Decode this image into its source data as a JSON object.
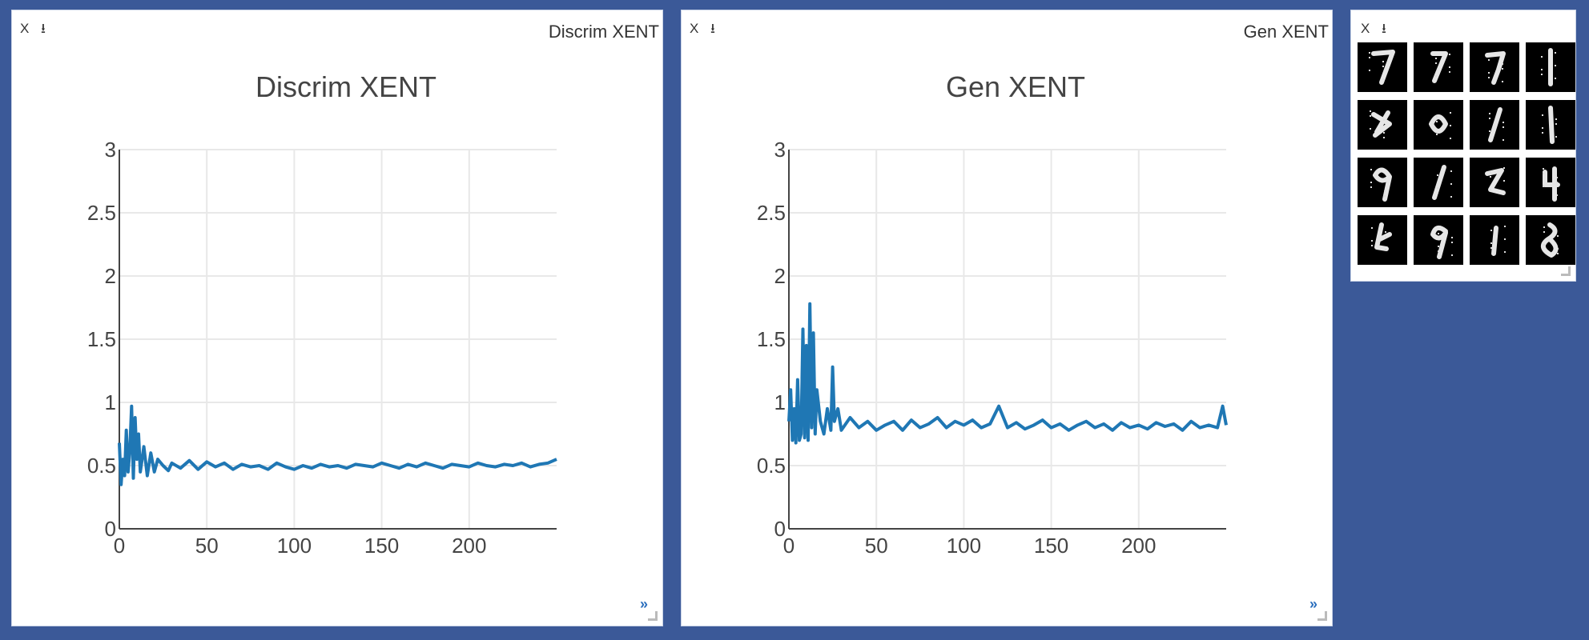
{
  "panes": [
    {
      "title": "Discrim XENT",
      "close_label": "X",
      "download_label": "⭳",
      "expand_label": "»"
    },
    {
      "title": "Gen XENT",
      "close_label": "X",
      "download_label": "⭳",
      "expand_label": "»"
    }
  ],
  "image_pane": {
    "close_label": "X",
    "download_label": "⭳",
    "tile_count": 16
  },
  "colors": {
    "background": "#3b5998",
    "line": "#1f77b4",
    "grid": "#e8e8e8"
  },
  "chart_data": [
    {
      "type": "line",
      "title": "Discrim XENT",
      "xlabel": "",
      "ylabel": "",
      "xlim": [
        0,
        250
      ],
      "ylim": [
        0,
        3
      ],
      "x_ticks": [
        0,
        50,
        100,
        150,
        200
      ],
      "y_ticks": [
        0,
        0.5,
        1,
        1.5,
        2,
        2.5,
        3
      ],
      "y_tick_labels": [
        "0",
        "0.5",
        "1",
        "1.5",
        "2",
        "2.5",
        "3"
      ],
      "grid": true,
      "series": [
        {
          "x": [
            0,
            1,
            2,
            3,
            4,
            5,
            6,
            7,
            8,
            9,
            10,
            11,
            12,
            14,
            16,
            18,
            20,
            22,
            25,
            28,
            30,
            35,
            40,
            45,
            50,
            55,
            60,
            65,
            70,
            75,
            80,
            85,
            90,
            95,
            100,
            105,
            110,
            115,
            120,
            125,
            130,
            135,
            140,
            145,
            150,
            155,
            160,
            165,
            170,
            175,
            180,
            185,
            190,
            195,
            200,
            205,
            210,
            215,
            220,
            225,
            230,
            235,
            240,
            245,
            250
          ],
          "y": [
            0.68,
            0.35,
            0.55,
            0.42,
            0.78,
            0.45,
            0.62,
            0.97,
            0.4,
            0.88,
            0.55,
            0.75,
            0.45,
            0.65,
            0.42,
            0.6,
            0.45,
            0.55,
            0.5,
            0.46,
            0.52,
            0.48,
            0.54,
            0.47,
            0.53,
            0.49,
            0.52,
            0.47,
            0.51,
            0.49,
            0.5,
            0.47,
            0.52,
            0.49,
            0.47,
            0.5,
            0.48,
            0.51,
            0.49,
            0.5,
            0.48,
            0.51,
            0.5,
            0.49,
            0.52,
            0.5,
            0.48,
            0.51,
            0.49,
            0.52,
            0.5,
            0.48,
            0.51,
            0.5,
            0.49,
            0.52,
            0.5,
            0.49,
            0.51,
            0.5,
            0.52,
            0.49,
            0.51,
            0.52,
            0.55
          ]
        }
      ]
    },
    {
      "type": "line",
      "title": "Gen XENT",
      "xlabel": "",
      "ylabel": "",
      "xlim": [
        0,
        250
      ],
      "ylim": [
        0,
        3
      ],
      "x_ticks": [
        0,
        50,
        100,
        150,
        200
      ],
      "y_ticks": [
        0,
        0.5,
        1,
        1.5,
        2,
        2.5,
        3
      ],
      "y_tick_labels": [
        "0",
        "0.5",
        "1",
        "1.5",
        "2",
        "2.5",
        "3"
      ],
      "grid": true,
      "series": [
        {
          "x": [
            0,
            1,
            2,
            3,
            4,
            5,
            6,
            7,
            8,
            9,
            10,
            11,
            12,
            13,
            14,
            15,
            16,
            18,
            20,
            22,
            24,
            25,
            26,
            28,
            30,
            35,
            40,
            45,
            50,
            55,
            60,
            65,
            70,
            75,
            80,
            85,
            90,
            95,
            100,
            105,
            110,
            115,
            120,
            125,
            130,
            135,
            140,
            145,
            150,
            155,
            160,
            165,
            170,
            175,
            180,
            185,
            190,
            195,
            200,
            205,
            210,
            215,
            220,
            225,
            230,
            235,
            240,
            245,
            248,
            250
          ],
          "y": [
            0.85,
            1.1,
            0.7,
            0.95,
            0.68,
            1.18,
            0.7,
            0.75,
            1.58,
            0.72,
            1.45,
            0.7,
            1.78,
            0.8,
            1.55,
            0.75,
            1.1,
            0.85,
            0.75,
            0.95,
            0.78,
            1.28,
            0.85,
            0.95,
            0.78,
            0.88,
            0.8,
            0.85,
            0.78,
            0.82,
            0.85,
            0.78,
            0.86,
            0.8,
            0.83,
            0.88,
            0.8,
            0.85,
            0.82,
            0.86,
            0.8,
            0.83,
            0.97,
            0.8,
            0.84,
            0.79,
            0.82,
            0.86,
            0.8,
            0.83,
            0.78,
            0.82,
            0.85,
            0.8,
            0.83,
            0.78,
            0.84,
            0.8,
            0.82,
            0.79,
            0.84,
            0.81,
            0.83,
            0.78,
            0.85,
            0.8,
            0.82,
            0.8,
            0.97,
            0.82
          ]
        }
      ]
    }
  ]
}
